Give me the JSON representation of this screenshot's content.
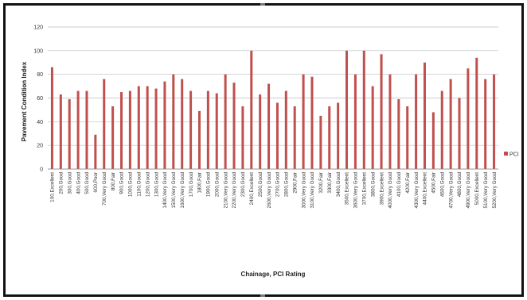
{
  "chart_data": {
    "type": "bar",
    "xlabel": "Chainage, PCI Rating",
    "ylabel": "Pavement Condition Index",
    "ylim": [
      0,
      120
    ],
    "yticks": [
      0,
      20,
      40,
      60,
      80,
      100,
      120
    ],
    "grid": true,
    "legend_position": "right",
    "bar_color": "#c0504d",
    "categories": [
      "100,Excellent",
      "200,Good",
      "300,Good",
      "400,Good",
      "500,Good",
      "600,Poor",
      "700,Very Good",
      "800,Fair",
      "900,Good",
      "1000,Good",
      "1100,Good",
      "1200,Good",
      "1300,Good",
      "1400,Very Good",
      "1500,Very Good",
      "1600,Very Good",
      "1700,Good",
      "1800,Fair",
      "1900,Good",
      "2000,Good",
      "2100,Very Good",
      "2200,Very Good",
      "2300,Good",
      "2400,Excellent",
      "2500,Good",
      "2600,Very Good",
      "2700,Good",
      "2800,Good",
      "2900,Fair",
      "3000,Very Good",
      "3100,Very Good",
      "3200,Fair",
      "3300,Fair",
      "3400,Good",
      "3500,Excellent",
      "3600,Very Good",
      "3700,Excellent",
      "3800,Good",
      "3900,Excellent",
      "4000,Very Good",
      "4100,Good",
      "4200,Fair",
      "4300,Very Good",
      "4400,Excellent",
      "4500,Fair",
      "4600,Good",
      "4700,Very Good",
      "4800,Good",
      "4900,Very Good",
      "5000,Excellent",
      "5100,Very Good",
      "5200,Very Good"
    ],
    "series": [
      {
        "name": "PCI",
        "values": [
          86,
          63,
          59,
          66,
          66,
          29,
          76,
          53,
          65,
          66,
          70,
          70,
          68,
          74,
          80,
          76,
          66,
          49,
          66,
          64,
          80,
          73,
          53,
          100,
          63,
          72,
          56,
          66,
          53,
          80,
          78,
          45,
          53,
          56,
          100,
          80,
          100,
          70,
          97,
          80,
          59,
          53,
          80,
          90,
          48,
          66,
          76,
          60,
          85,
          94,
          76,
          80
        ]
      }
    ]
  }
}
